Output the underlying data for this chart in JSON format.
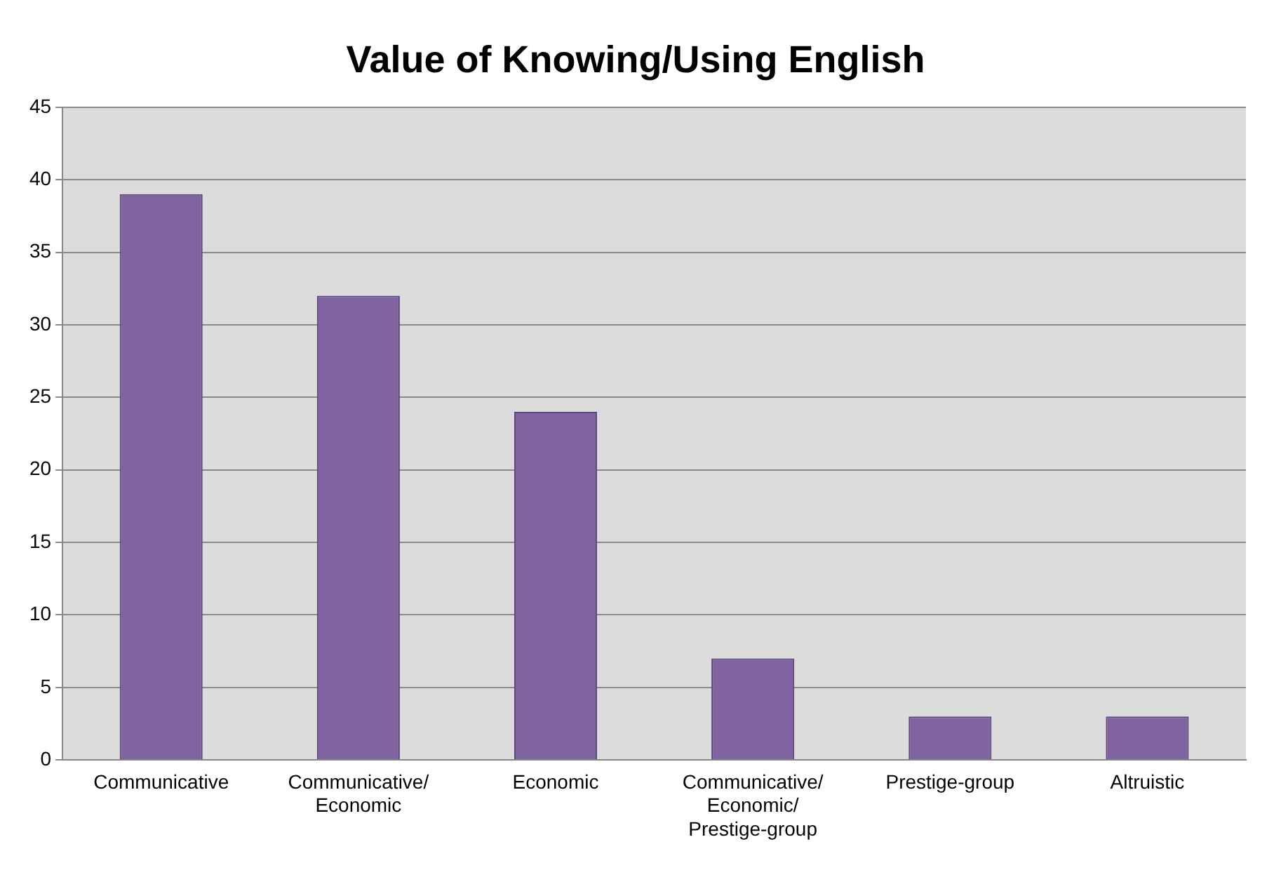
{
  "chart_data": {
    "type": "bar",
    "title": "Value of Knowing/Using English",
    "categories": [
      "Communicative",
      "Communicative/ Economic",
      "Economic",
      "Communicative/ Economic/ Prestige-group",
      "Prestige-group",
      "Altruistic"
    ],
    "values": [
      39,
      32,
      24,
      7,
      3,
      3
    ],
    "color": "#8064a2",
    "ylim": [
      0,
      45
    ],
    "yticks": [
      0,
      5,
      10,
      15,
      20,
      25,
      30,
      35,
      40,
      45
    ],
    "grid": "y",
    "legend": false
  }
}
